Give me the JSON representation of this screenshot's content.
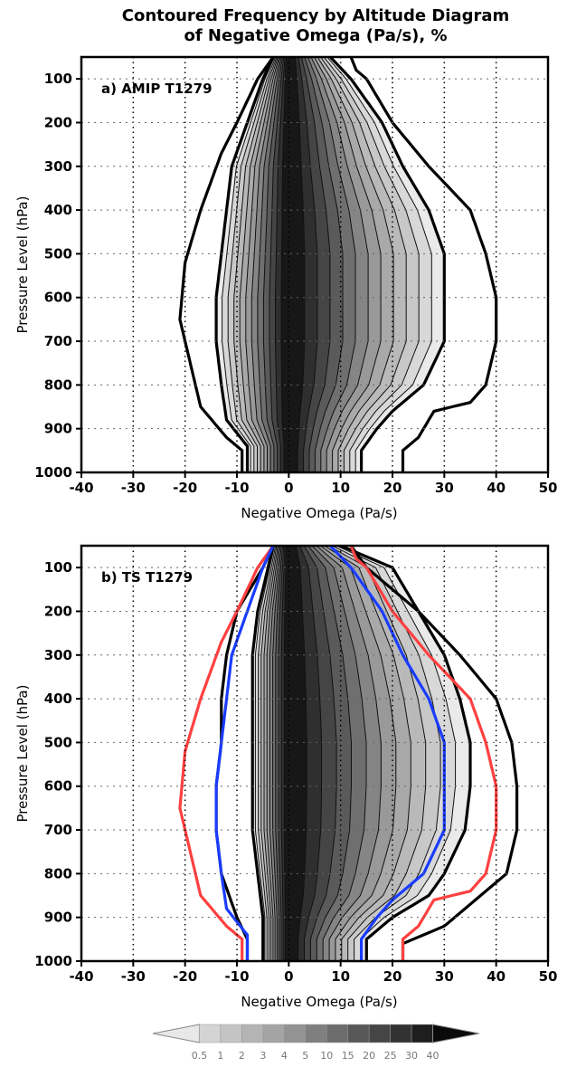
{
  "figure": {
    "title_line1": "Contoured Frequency by Altitude Diagram",
    "title_line2": "of Negative Omega (Pa/s), %"
  },
  "chart_data": [
    {
      "type": "area",
      "panel_label": "a) AMIP T1279",
      "xlabel": "Negative Omega (Pa/s)",
      "ylabel": "Pressure Level (hPa)",
      "xlim": [
        -40,
        50
      ],
      "ylim": [
        1000,
        50
      ],
      "y_inverted": true,
      "xticks": [
        -40,
        -30,
        -20,
        -10,
        0,
        10,
        20,
        30,
        40,
        50
      ],
      "yticks": [
        100,
        200,
        300,
        400,
        500,
        600,
        700,
        800,
        900,
        1000
      ],
      "grid": "dotted",
      "contour_levels_percent": [
        0.5,
        1,
        2,
        3,
        4,
        5,
        10,
        15,
        20,
        25,
        30,
        40
      ],
      "outer_contours": [
        {
          "level": "outermost",
          "color": "#000000",
          "left": [
            [
              50,
              -3
            ],
            [
              100,
              -6
            ],
            [
              200,
              -10
            ],
            [
              270,
              -13
            ],
            [
              400,
              -17
            ],
            [
              520,
              -20
            ],
            [
              650,
              -21
            ],
            [
              750,
              -19
            ],
            [
              850,
              -17
            ],
            [
              920,
              -12
            ],
            [
              950,
              -9
            ],
            [
              1000,
              -9
            ]
          ],
          "right": [
            [
              50,
              12
            ],
            [
              80,
              13
            ],
            [
              100,
              15
            ],
            [
              200,
              20
            ],
            [
              300,
              27
            ],
            [
              400,
              35
            ],
            [
              500,
              38
            ],
            [
              600,
              40
            ],
            [
              700,
              40
            ],
            [
              800,
              38
            ],
            [
              840,
              35
            ],
            [
              860,
              28
            ],
            [
              920,
              25
            ],
            [
              950,
              22
            ],
            [
              1000,
              22
            ]
          ]
        },
        {
          "level": "second",
          "color": "#000000",
          "left": [
            [
              50,
              -3
            ],
            [
              100,
              -5
            ],
            [
              200,
              -8
            ],
            [
              300,
              -11
            ],
            [
              400,
              -12
            ],
            [
              500,
              -13
            ],
            [
              600,
              -14
            ],
            [
              700,
              -14
            ],
            [
              800,
              -13
            ],
            [
              880,
              -12
            ],
            [
              940,
              -8
            ],
            [
              1000,
              -8
            ]
          ],
          "right": [
            [
              50,
              8
            ],
            [
              100,
              12
            ],
            [
              200,
              18
            ],
            [
              300,
              22
            ],
            [
              400,
              27
            ],
            [
              500,
              30
            ],
            [
              600,
              30
            ],
            [
              700,
              30
            ],
            [
              800,
              26
            ],
            [
              860,
              20
            ],
            [
              900,
              17
            ],
            [
              950,
              14
            ],
            [
              1000,
              14
            ]
          ]
        }
      ]
    },
    {
      "type": "area",
      "panel_label": "b) TS T1279",
      "xlabel": "Negative Omega (Pa/s)",
      "ylabel": "Pressure Level (hPa)",
      "xlim": [
        -40,
        50
      ],
      "ylim": [
        1000,
        50
      ],
      "y_inverted": true,
      "xticks": [
        -40,
        -30,
        -20,
        -10,
        0,
        10,
        20,
        30,
        40,
        50
      ],
      "yticks": [
        100,
        200,
        300,
        400,
        500,
        600,
        700,
        800,
        900,
        1000
      ],
      "grid": "dotted",
      "contour_levels_percent": [
        0.5,
        1,
        2,
        3,
        4,
        5,
        10,
        15,
        20,
        25,
        30,
        40
      ],
      "outer_contours": [
        {
          "level": "outermost",
          "color": "#000000",
          "left": [
            [
              50,
              -3
            ],
            [
              100,
              -5
            ],
            [
              200,
              -10
            ],
            [
              300,
              -12
            ],
            [
              400,
              -13
            ],
            [
              500,
              -13
            ],
            [
              600,
              -14
            ],
            [
              700,
              -14
            ],
            [
              800,
              -13
            ],
            [
              900,
              -10
            ],
            [
              950,
              -8
            ],
            [
              1000,
              -8
            ]
          ],
          "right": [
            [
              50,
              12
            ],
            [
              100,
              15
            ],
            [
              200,
              25
            ],
            [
              300,
              33
            ],
            [
              400,
              40
            ],
            [
              500,
              43
            ],
            [
              600,
              44
            ],
            [
              700,
              44
            ],
            [
              800,
              42
            ],
            [
              870,
              35
            ],
            [
              920,
              30
            ],
            [
              960,
              22
            ],
            [
              1000,
              22
            ]
          ]
        },
        {
          "level": "second",
          "color": "#000000",
          "left": [
            [
              50,
              -3
            ],
            [
              100,
              -4
            ],
            [
              200,
              -6
            ],
            [
              300,
              -7
            ],
            [
              400,
              -7
            ],
            [
              500,
              -7
            ],
            [
              600,
              -7
            ],
            [
              700,
              -7
            ],
            [
              800,
              -6
            ],
            [
              900,
              -5
            ],
            [
              1000,
              -5
            ]
          ],
          "right": [
            [
              50,
              10
            ],
            [
              100,
              20
            ],
            [
              200,
              25
            ],
            [
              300,
              30
            ],
            [
              400,
              33
            ],
            [
              500,
              35
            ],
            [
              600,
              35
            ],
            [
              700,
              34
            ],
            [
              800,
              30
            ],
            [
              850,
              27
            ],
            [
              900,
              20
            ],
            [
              950,
              15
            ],
            [
              1000,
              15
            ]
          ]
        },
        {
          "level": "reference-outer",
          "color": "#ff4040",
          "left": [
            [
              50,
              -3
            ],
            [
              100,
              -6
            ],
            [
              200,
              -10
            ],
            [
              270,
              -13
            ],
            [
              400,
              -17
            ],
            [
              520,
              -20
            ],
            [
              650,
              -21
            ],
            [
              750,
              -19
            ],
            [
              850,
              -17
            ],
            [
              920,
              -12
            ],
            [
              950,
              -9
            ],
            [
              1000,
              -9
            ]
          ],
          "right": [
            [
              50,
              12
            ],
            [
              80,
              13
            ],
            [
              100,
              15
            ],
            [
              200,
              20
            ],
            [
              300,
              27
            ],
            [
              400,
              35
            ],
            [
              500,
              38
            ],
            [
              600,
              40
            ],
            [
              700,
              40
            ],
            [
              800,
              38
            ],
            [
              840,
              35
            ],
            [
              860,
              28
            ],
            [
              920,
              25
            ],
            [
              950,
              22
            ],
            [
              1000,
              22
            ]
          ]
        },
        {
          "level": "reference-second",
          "color": "#1a3cff",
          "left": [
            [
              50,
              -3
            ],
            [
              100,
              -5
            ],
            [
              200,
              -8
            ],
            [
              300,
              -11
            ],
            [
              400,
              -12
            ],
            [
              500,
              -13
            ],
            [
              600,
              -14
            ],
            [
              700,
              -14
            ],
            [
              800,
              -13
            ],
            [
              880,
              -12
            ],
            [
              940,
              -8
            ],
            [
              1000,
              -8
            ]
          ],
          "right": [
            [
              50,
              8
            ],
            [
              100,
              12
            ],
            [
              200,
              18
            ],
            [
              300,
              22
            ],
            [
              400,
              27
            ],
            [
              500,
              30
            ],
            [
              600,
              30
            ],
            [
              700,
              30
            ],
            [
              800,
              26
            ],
            [
              860,
              20
            ],
            [
              900,
              17
            ],
            [
              950,
              14
            ],
            [
              1000,
              14
            ]
          ]
        }
      ]
    }
  ],
  "colorbar": {
    "levels": [
      "0.5",
      "1",
      "2",
      "3",
      "4",
      "5",
      "10",
      "15",
      "20",
      "25",
      "30",
      "40"
    ],
    "colors": [
      "#e8e8e8",
      "#d4d4d4",
      "#c4c4c4",
      "#b4b4b4",
      "#a4a4a4",
      "#939393",
      "#7f7f7f",
      "#6c6c6c",
      "#585858",
      "#454545",
      "#323232",
      "#1e1e1e",
      "#0a0a0a"
    ]
  }
}
